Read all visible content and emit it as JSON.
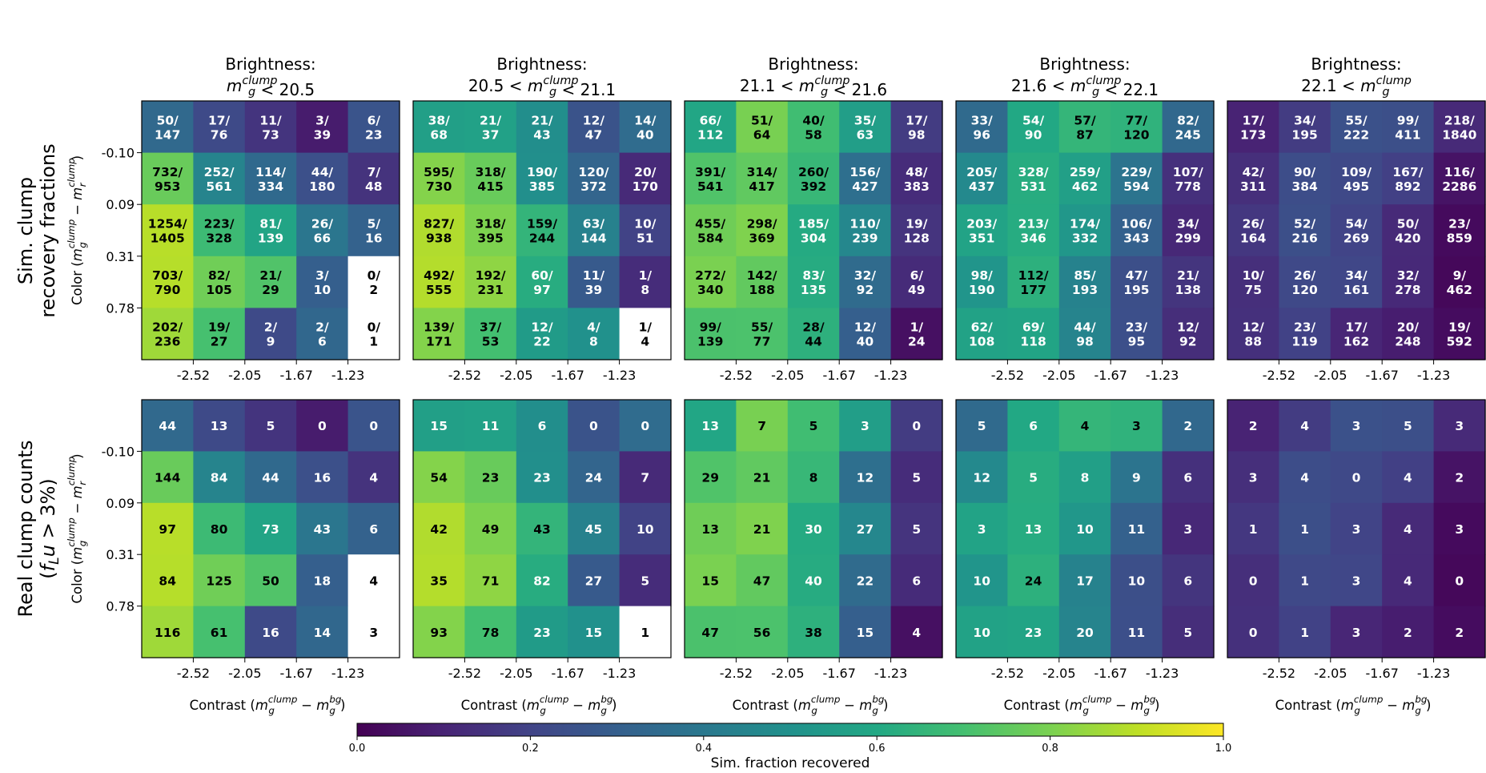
{
  "chart_data": {
    "type": "heatmap",
    "panel_titles": [
      {
        "line1": "Brightness:",
        "line2": "m_g^clump < 20.5"
      },
      {
        "line1": "Brightness:",
        "line2": "20.5 < m_g^clump < 21.1"
      },
      {
        "line1": "Brightness:",
        "line2": "21.1 < m_g^clump < 21.6"
      },
      {
        "line1": "Brightness:",
        "line2": "21.6 < m_g^clump < 22.1"
      },
      {
        "line1": "Brightness:",
        "line2": "22.1 < m_g^clump"
      }
    ],
    "row_labels": {
      "top": [
        "Sim. clump",
        "recovery fractions"
      ],
      "bottom": [
        "Real clump counts",
        "(f_L u > 3%)"
      ]
    },
    "x_ticks": [
      "-2.52",
      "-2.05",
      "-1.67",
      "-1.23"
    ],
    "y_ticks": [
      "-0.10",
      "0.09",
      "0.31",
      "0.78"
    ],
    "xlabel": "Contrast (m_g^clump − m_g^bg)",
    "ylabel": "Color (m_g^clump − m_r^clump)",
    "colorbar": {
      "label": "Sim. fraction recovered",
      "ticks": [
        "0.0",
        "0.2",
        "0.4",
        "0.6",
        "0.8",
        "1.0"
      ],
      "range": [
        0,
        1
      ],
      "colormap": "viridis"
    },
    "panels": [
      {
        "sim": [
          [
            "50/147",
            "17/76",
            "11/73",
            "3/39",
            "6/23"
          ],
          [
            "732/953",
            "252/561",
            "114/334",
            "44/180",
            "7/48"
          ],
          [
            "1254/1405",
            "223/328",
            "81/139",
            "26/66",
            "5/16"
          ],
          [
            "703/790",
            "82/105",
            "21/29",
            "3/10",
            "0/2"
          ],
          [
            "202/236",
            "19/27",
            "2/9",
            "2/6",
            "0/1"
          ]
        ],
        "real": [
          [
            44,
            13,
            5,
            0,
            0
          ],
          [
            144,
            84,
            44,
            16,
            4
          ],
          [
            97,
            80,
            73,
            43,
            6
          ],
          [
            84,
            125,
            50,
            18,
            4
          ],
          [
            116,
            61,
            16,
            14,
            3
          ]
        ]
      },
      {
        "sim": [
          [
            "38/68",
            "21/37",
            "21/43",
            "12/47",
            "14/40"
          ],
          [
            "595/730",
            "318/415",
            "190/385",
            "120/372",
            "20/170"
          ],
          [
            "827/938",
            "318/395",
            "159/244",
            "63/144",
            "10/51"
          ],
          [
            "492/555",
            "192/231",
            "60/97",
            "11/39",
            "1/8"
          ],
          [
            "139/171",
            "37/53",
            "12/22",
            "4/8",
            "1/4"
          ]
        ],
        "real": [
          [
            15,
            11,
            6,
            0,
            0
          ],
          [
            54,
            23,
            23,
            24,
            7
          ],
          [
            42,
            49,
            43,
            45,
            10
          ],
          [
            35,
            71,
            82,
            27,
            5
          ],
          [
            93,
            78,
            23,
            15,
            1
          ]
        ]
      },
      {
        "sim": [
          [
            "66/112",
            "51/64",
            "40/58",
            "35/63",
            "17/98"
          ],
          [
            "391/541",
            "314/417",
            "260/392",
            "156/427",
            "48/383"
          ],
          [
            "455/584",
            "298/369",
            "185/304",
            "110/239",
            "19/128"
          ],
          [
            "272/340",
            "142/188",
            "83/135",
            "32/92",
            "6/49"
          ],
          [
            "99/139",
            "55/77",
            "28/44",
            "12/40",
            "1/24"
          ]
        ],
        "real": [
          [
            13,
            7,
            5,
            3,
            0
          ],
          [
            29,
            21,
            8,
            12,
            5
          ],
          [
            13,
            21,
            30,
            27,
            5
          ],
          [
            15,
            47,
            40,
            22,
            6
          ],
          [
            47,
            56,
            38,
            15,
            4
          ]
        ]
      },
      {
        "sim": [
          [
            "33/96",
            "54/90",
            "57/87",
            "77/120",
            "82/245"
          ],
          [
            "205/437",
            "328/531",
            "259/462",
            "229/594",
            "107/778"
          ],
          [
            "203/351",
            "213/346",
            "174/332",
            "106/343",
            "34/299"
          ],
          [
            "98/190",
            "112/177",
            "85/193",
            "47/195",
            "21/138"
          ],
          [
            "62/108",
            "69/118",
            "44/98",
            "23/95",
            "12/92"
          ]
        ],
        "real": [
          [
            5,
            6,
            4,
            3,
            2
          ],
          [
            12,
            5,
            8,
            9,
            6
          ],
          [
            3,
            13,
            10,
            11,
            3
          ],
          [
            10,
            24,
            17,
            10,
            6
          ],
          [
            10,
            23,
            20,
            11,
            5
          ]
        ]
      },
      {
        "sim": [
          [
            "17/173",
            "34/195",
            "55/222",
            "99/411",
            "218/1840"
          ],
          [
            "42/311",
            "90/384",
            "109/495",
            "167/892",
            "116/2286"
          ],
          [
            "26/164",
            "52/216",
            "54/269",
            "50/420",
            "23/859"
          ],
          [
            "10/75",
            "26/120",
            "34/161",
            "32/278",
            "9/462"
          ],
          [
            "12/88",
            "23/119",
            "17/162",
            "20/248",
            "19/592"
          ]
        ],
        "real": [
          [
            2,
            4,
            3,
            5,
            3
          ],
          [
            3,
            4,
            0,
            4,
            2
          ],
          [
            1,
            1,
            3,
            4,
            3
          ],
          [
            0,
            1,
            3,
            4,
            0
          ],
          [
            0,
            1,
            3,
            2,
            2
          ]
        ]
      }
    ]
  }
}
